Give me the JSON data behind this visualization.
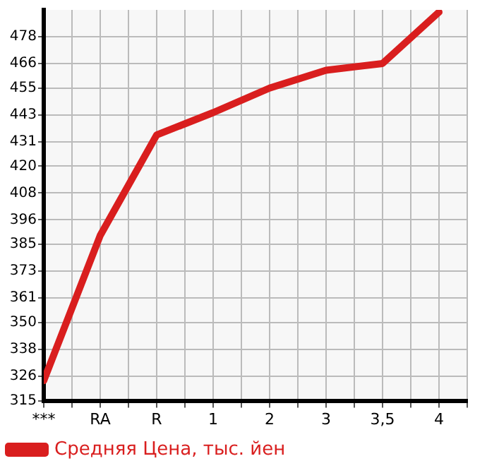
{
  "chart_data": {
    "type": "line",
    "categories": [
      "***",
      "RA",
      "R",
      "1",
      "2",
      "3",
      "3,5",
      "4"
    ],
    "series": [
      {
        "name": "Средняя Цена, тыс. йен",
        "color": "#d91e1e",
        "values": [
          324,
          389,
          434,
          444,
          455,
          463,
          466,
          489
        ]
      }
    ],
    "ylim": [
      315,
      490
    ],
    "yticks": [
      315,
      326,
      338,
      350,
      361,
      373,
      385,
      396,
      408,
      420,
      431,
      443,
      455,
      466,
      478
    ],
    "grid": true,
    "legend": "bottom left",
    "marker": "none",
    "line_style": "solid"
  }
}
